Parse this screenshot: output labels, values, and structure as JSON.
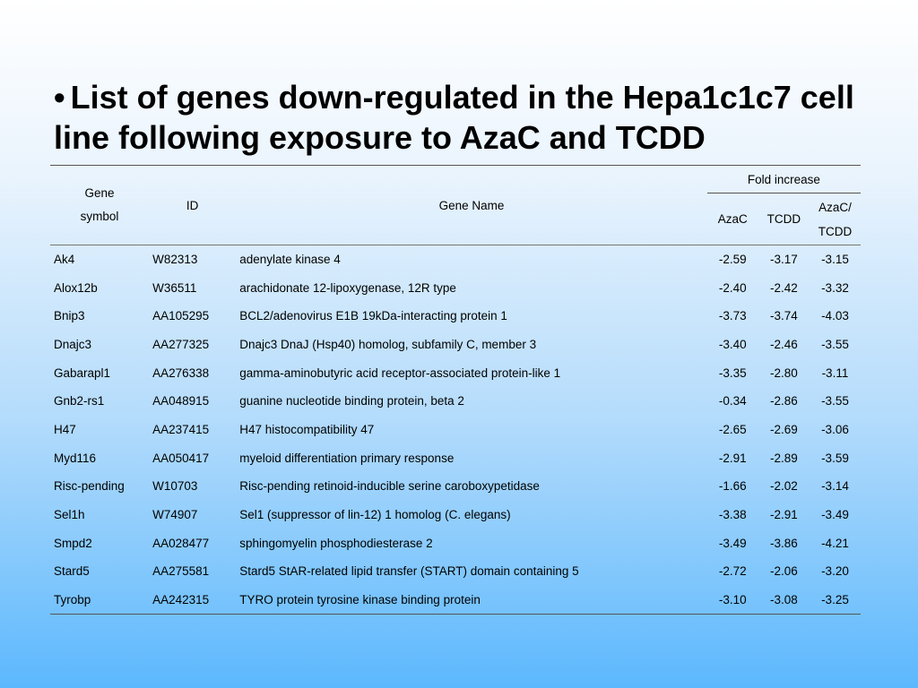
{
  "title": {
    "bullet": "•",
    "text": "List of genes down-regulated in the Hepa1c1c7 cell line following exposure to AzaC and TCDD"
  },
  "table": {
    "headers": {
      "gene_symbol_line1": "Gene",
      "gene_symbol_line2": "symbol",
      "id": "ID",
      "gene_name": "Gene Name",
      "fold_increase": "Fold increase",
      "azac": "AzaC",
      "tcdd": "TCDD",
      "azac_tcdd_line1": "AzaC/",
      "azac_tcdd_line2": "TCDD"
    },
    "rows": [
      {
        "symbol": "Ak4",
        "id": "W82313",
        "name": "adenylate kinase 4",
        "azac": "-2.59",
        "tcdd": "-3.17",
        "azac_tcdd": "-3.15"
      },
      {
        "symbol": "Alox12b",
        "id": "W36511",
        "name": "arachidonate 12-lipoxygenase, 12R type",
        "azac": "-2.40",
        "tcdd": "-2.42",
        "azac_tcdd": "-3.32"
      },
      {
        "symbol": "Bnip3",
        "id": "AA105295",
        "name": "BCL2/adenovirus E1B 19kDa-interacting protein 1",
        "azac": "-3.73",
        "tcdd": "-3.74",
        "azac_tcdd": "-4.03"
      },
      {
        "symbol": "Dnajc3",
        "id": "AA277325",
        "name": "Dnajc3 DnaJ (Hsp40) homolog, subfamily C, member 3",
        "azac": "-3.40",
        "tcdd": "-2.46",
        "azac_tcdd": "-3.55"
      },
      {
        "symbol": "Gabarapl1",
        "id": "AA276338",
        "name": "gamma-aminobutyric acid receptor-associated protein-like 1",
        "azac": "-3.35",
        "tcdd": "-2.80",
        "azac_tcdd": "-3.11"
      },
      {
        "symbol": "Gnb2-rs1",
        "id": "AA048915",
        "name": "guanine nucleotide binding protein, beta 2",
        "azac": "-0.34",
        "tcdd": "-2.86",
        "azac_tcdd": "-3.55"
      },
      {
        "symbol": "H47",
        "id": "AA237415",
        "name": "H47 histocompatibility 47",
        "azac": "-2.65",
        "tcdd": "-2.69",
        "azac_tcdd": "-3.06"
      },
      {
        "symbol": "Myd116",
        "id": "AA050417",
        "name": "myeloid differentiation primary response",
        "azac": "-2.91",
        "tcdd": "-2.89",
        "azac_tcdd": "-3.59"
      },
      {
        "symbol": "Risc-pending",
        "id": "W10703",
        "name": "Risc-pending retinoid-inducible serine caroboxypetidase",
        "azac": "-1.66",
        "tcdd": "-2.02",
        "azac_tcdd": "-3.14"
      },
      {
        "symbol": "Sel1h",
        "id": "W74907",
        "name": "Sel1 (suppressor of lin-12) 1 homolog (C. elegans)",
        "azac": "-3.38",
        "tcdd": "-2.91",
        "azac_tcdd": "-3.49"
      },
      {
        "symbol": "Smpd2",
        "id": "AA028477",
        "name": "sphingomyelin phosphodiesterase 2",
        "azac": "-3.49",
        "tcdd": "-3.86",
        "azac_tcdd": "-4.21"
      },
      {
        "symbol": "Stard5",
        "id": "AA275581",
        "name": "Stard5 StAR-related lipid transfer (START) domain containing 5",
        "azac": "-2.72",
        "tcdd": "-2.06",
        "azac_tcdd": "-3.20"
      },
      {
        "symbol": "Tyrobp",
        "id": "AA242315",
        "name": "TYRO protein tyrosine kinase binding protein",
        "azac": "-3.10",
        "tcdd": "-3.08",
        "azac_tcdd": "-3.25"
      }
    ]
  }
}
